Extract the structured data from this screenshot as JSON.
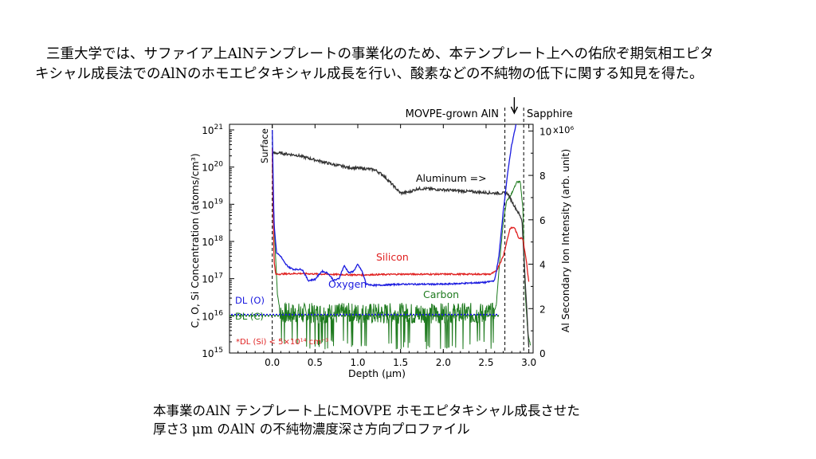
{
  "intro": {
    "line1": "三重大学では、サファイア上AlNテンプレートの事業化のため、本テンプレート上への佑欣ぞ期気相エピタ",
    "line2": "キシャル成長法でのAlNのホモエピタキシャル成長を行い、酸素などの不純物の低下に関する知見を得た。"
  },
  "caption": {
    "line1": "本事業のAlN テンプレート上にMOVPE ホモエピタキシャル成長させた",
    "line2": "厚さ3 μm のAlN の不純物濃度深さ方向プロファイル"
  },
  "chart_data": {
    "type": "line",
    "xlabel": "Depth (μm)",
    "ylabel": "C, O, Si Concentration (atoms/cm³)",
    "y2label": "Al Secondary Ion Intensity (arb. unit)",
    "xlim": [
      -0.5,
      3.05
    ],
    "ylim_log": [
      15,
      21.15
    ],
    "y2lim": [
      0,
      10.3
    ],
    "y2_multiplier_label": "x10⁶",
    "x_ticks": [
      0.0,
      0.5,
      1.0,
      1.5,
      2.0,
      2.5,
      3.0
    ],
    "x_tick_labels": [
      "0.0",
      "0.5",
      "1.0",
      "1.5",
      "2.0",
      "2.5",
      "3.0"
    ],
    "y_tick_exponents": [
      15,
      16,
      17,
      18,
      19,
      20,
      21
    ],
    "y2_ticks": [
      0,
      2,
      4,
      6,
      8,
      10
    ],
    "region_labels": {
      "movpe": "MOVPE-grown AlN",
      "sapphire": "Sapphire",
      "surface": "Surface"
    },
    "annotations": {
      "dl_o": "DL (O)",
      "dl_c": "DL (C)",
      "dl_si": "*DL (Si) < 5×10¹⁴ cm⁻³",
      "aluminum": "Aluminum =>"
    },
    "series": [
      {
        "name": "Silicon",
        "axis": "left",
        "color": "#e02020",
        "x": [
          0.0,
          0.02,
          0.04,
          0.3,
          0.6,
          1.0,
          1.5,
          2.0,
          2.55,
          2.62,
          2.7,
          2.78,
          2.83,
          2.88,
          2.93,
          2.97,
          3.0
        ],
        "y": [
          20.5,
          17.5,
          17.12,
          17.14,
          17.12,
          17.1,
          17.12,
          17.12,
          17.12,
          17.2,
          17.6,
          18.35,
          18.38,
          18.1,
          18.08,
          17.5,
          16.9
        ]
      },
      {
        "name": "Oxygen",
        "axis": "left",
        "color": "#1a1adf",
        "x": [
          0.0,
          0.02,
          0.05,
          0.1,
          0.15,
          0.2,
          0.25,
          0.35,
          0.42,
          0.5,
          0.58,
          0.65,
          0.72,
          0.78,
          0.84,
          0.9,
          0.95,
          1.0,
          1.05,
          1.1,
          1.2,
          1.5,
          2.0,
          2.5,
          2.6,
          2.65,
          2.7,
          2.75,
          2.8,
          2.85
        ],
        "y": [
          21.0,
          18.5,
          17.7,
          17.6,
          17.4,
          17.3,
          17.25,
          17.25,
          16.95,
          16.98,
          17.2,
          17.15,
          16.95,
          17.0,
          17.35,
          17.15,
          17.2,
          17.38,
          17.2,
          16.85,
          16.82,
          16.85,
          16.85,
          16.9,
          16.95,
          17.6,
          18.8,
          19.8,
          20.6,
          21.15
        ]
      },
      {
        "name": "Carbon",
        "axis": "left",
        "color": "#1e7a1e",
        "noisy": true,
        "x": [
          0.0,
          0.03,
          0.06,
          0.1,
          2.58,
          2.62,
          2.66,
          2.7,
          2.74,
          2.78,
          2.82,
          2.86,
          2.9,
          2.93,
          2.96,
          2.99,
          3.02
        ],
        "y": [
          20.0,
          18.0,
          16.6,
          16.0,
          16.0,
          16.3,
          17.5,
          18.5,
          19.1,
          19.2,
          19.4,
          19.6,
          19.6,
          18.9,
          16.5,
          15.5,
          15.2
        ]
      },
      {
        "name": "Aluminum",
        "axis": "right",
        "color": "#333333",
        "x": [
          0.0,
          0.1,
          0.3,
          0.5,
          0.7,
          0.9,
          1.1,
          1.2,
          1.3,
          1.4,
          1.5,
          1.6,
          1.7,
          1.8,
          2.0,
          2.2,
          2.4,
          2.6,
          2.75,
          2.82,
          2.88,
          2.92,
          2.95,
          3.0
        ],
        "y": [
          9.0,
          9.0,
          8.9,
          8.7,
          8.5,
          8.35,
          8.3,
          8.25,
          8.0,
          7.6,
          7.2,
          7.25,
          7.4,
          7.4,
          7.35,
          7.3,
          7.25,
          7.2,
          7.2,
          6.7,
          6.3,
          6.0,
          3.8,
          0.2
        ]
      }
    ],
    "dl_level_log": 16.0
  }
}
